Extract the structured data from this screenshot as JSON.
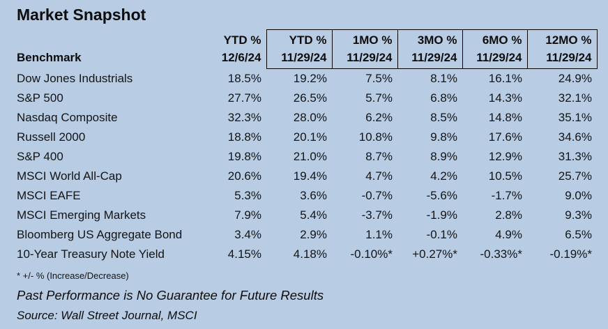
{
  "title": "Market Snapshot",
  "colors": {
    "background": "#B8CCE4",
    "text": "#141414",
    "header_box_border": "#000000"
  },
  "table": {
    "row_header": "Benchmark",
    "columns": [
      {
        "period": "YTD %",
        "date": "12/6/24",
        "boxed": false
      },
      {
        "period": "YTD %",
        "date": "11/29/24",
        "boxed": true
      },
      {
        "period": "1MO %",
        "date": "11/29/24",
        "boxed": true
      },
      {
        "period": "3MO %",
        "date": "11/29/24",
        "boxed": true
      },
      {
        "period": "6MO %",
        "date": "11/29/24",
        "boxed": true
      },
      {
        "period": "12MO %",
        "date": "11/29/24",
        "boxed": true
      }
    ],
    "rows": [
      {
        "name": "Dow Jones Industrials",
        "values": [
          "18.5%",
          "19.2%",
          "7.5%",
          "8.1%",
          "16.1%",
          "24.9%"
        ]
      },
      {
        "name": "S&P 500",
        "values": [
          "27.7%",
          "26.5%",
          "5.7%",
          "6.8%",
          "14.3%",
          "32.1%"
        ]
      },
      {
        "name": "Nasdaq Composite",
        "values": [
          "32.3%",
          "28.0%",
          "6.2%",
          "8.5%",
          "14.8%",
          "35.1%"
        ]
      },
      {
        "name": "Russell 2000",
        "values": [
          "18.8%",
          "20.1%",
          "10.8%",
          "9.8%",
          "17.6%",
          "34.6%"
        ]
      },
      {
        "name": "S&P 400",
        "values": [
          "19.8%",
          "21.0%",
          "8.7%",
          "8.9%",
          "12.9%",
          "31.3%"
        ]
      },
      {
        "name": "MSCI World All-Cap",
        "values": [
          "20.6%",
          "19.4%",
          "4.7%",
          "4.2%",
          "10.5%",
          "25.7%"
        ]
      },
      {
        "name": "MSCI EAFE",
        "values": [
          "5.3%",
          "3.6%",
          "-0.7%",
          "-5.6%",
          "-1.7%",
          "9.0%"
        ]
      },
      {
        "name": "MSCI Emerging Markets",
        "values": [
          "7.9%",
          "5.4%",
          "-3.7%",
          "-1.9%",
          "2.8%",
          "9.3%"
        ]
      },
      {
        "name": "Bloomberg US Aggregate Bond",
        "values": [
          "3.4%",
          "2.9%",
          "1.1%",
          "-0.1%",
          "4.9%",
          "6.5%"
        ]
      },
      {
        "name": "10-Year Treasury Note Yield",
        "values": [
          "4.15%",
          "4.18%",
          "-0.10%*",
          "+0.27%*",
          "-0.33%*",
          "-0.19%*"
        ]
      }
    ]
  },
  "footnotes": {
    "asterisk_note": "* +/- % (Increase/Decrease)",
    "disclaimer": "Past Performance is No Guarantee for Future Results",
    "source": "Source: Wall Street Journal, MSCI"
  }
}
